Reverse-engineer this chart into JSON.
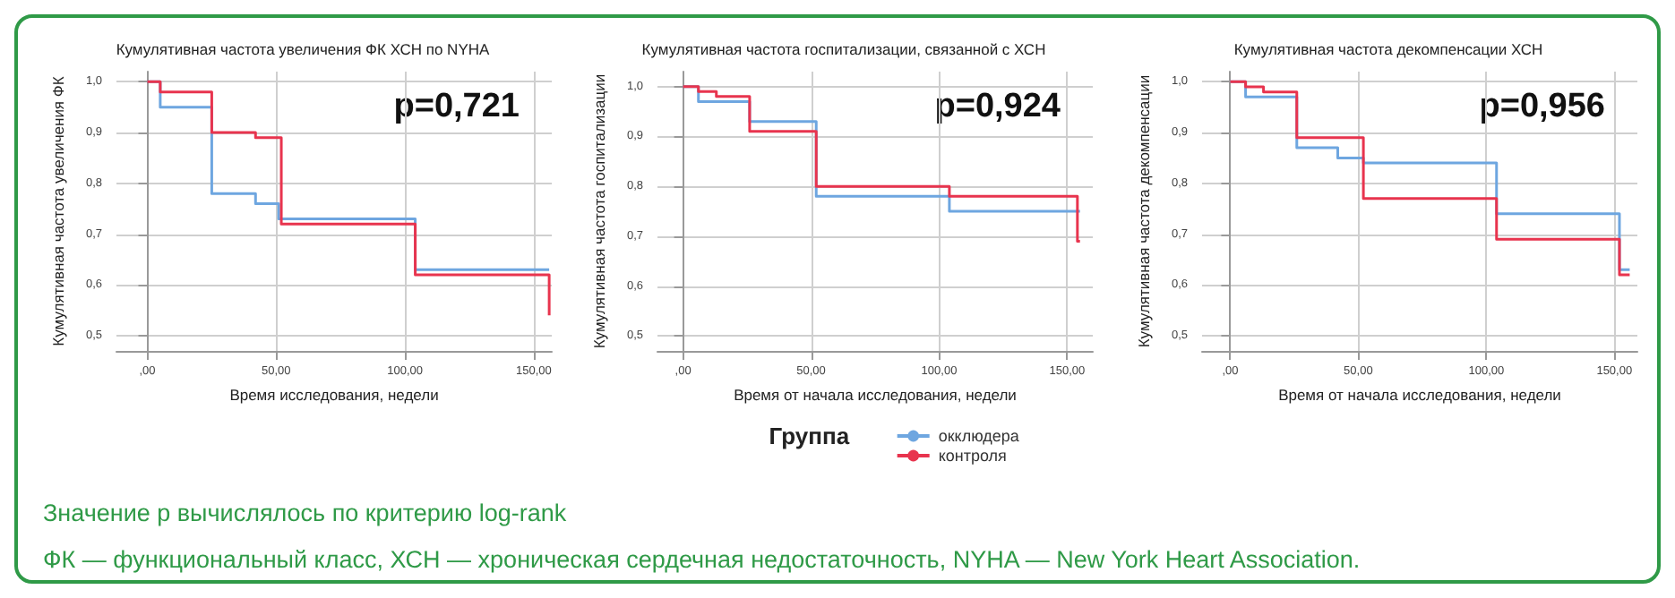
{
  "chart_data": [
    {
      "type": "step",
      "title": "Кумулятивная частота увеличения ФК ХСН по NYHA",
      "xlabel": "Время исследования, недели",
      "ylabel": "Кумулятивная частота увеличения ФК",
      "xlim": [
        -12,
        157
      ],
      "ylim": [
        0.47,
        1.02
      ],
      "xticks": [
        {
          "value": 0,
          "label": ",00"
        },
        {
          "value": 50,
          "label": "50,00"
        },
        {
          "value": 100,
          "label": "100,00"
        },
        {
          "value": 150,
          "label": "150,00"
        }
      ],
      "yticks": [
        {
          "value": 0.5,
          "label": "0,5"
        },
        {
          "value": 0.6,
          "label": "0,6"
        },
        {
          "value": 0.7,
          "label": "0,7"
        },
        {
          "value": 0.8,
          "label": "0,8"
        },
        {
          "value": 0.9,
          "label": "0,9"
        },
        {
          "value": 1,
          "label": "1,0"
        }
      ],
      "grid": true,
      "marker": "none",
      "legend": false,
      "annotations": [
        "p=0,721"
      ],
      "series": [
        {
          "color": "#6ea6e0",
          "x": [
            0,
            5,
            25,
            42,
            51,
            104,
            156
          ],
          "values": [
            1,
            0.95,
            0.78,
            0.76,
            0.73,
            0.63,
            0.63
          ]
        },
        {
          "color": "#e8344e",
          "x": [
            0,
            5,
            25,
            42,
            52,
            104,
            156,
            156
          ],
          "values": [
            1,
            0.98,
            0.9,
            0.89,
            0.72,
            0.62,
            0.62,
            0.54
          ]
        }
      ]
    },
    {
      "type": "step",
      "title": "Кумулятивная частота госпитализации, связанной с ХСН",
      "xlabel": "Время от начала исследования, недели",
      "ylabel": "Кумулятивная частота госпитализации",
      "xlim": [
        -10,
        160
      ],
      "ylim": [
        0.47,
        1.03
      ],
      "xticks": [
        {
          "value": 0,
          "label": ",00"
        },
        {
          "value": 50,
          "label": "50,00"
        },
        {
          "value": 100,
          "label": "100,00"
        },
        {
          "value": 150,
          "label": "150,00"
        }
      ],
      "yticks": [
        {
          "value": 0.5,
          "label": "0,5"
        },
        {
          "value": 0.6,
          "label": "0,6"
        },
        {
          "value": 0.7,
          "label": "0,7"
        },
        {
          "value": 0.8,
          "label": "0,8"
        },
        {
          "value": 0.9,
          "label": "0,9"
        },
        {
          "value": 1,
          "label": "1,0"
        }
      ],
      "grid": true,
      "marker": "none",
      "legend": "bottom",
      "legend_title": "Группа",
      "annotations": [
        "p=0,924"
      ],
      "series": [
        {
          "name": "окклюдера",
          "color": "#6ea6e0",
          "x": [
            0,
            6,
            26,
            52,
            104,
            155
          ],
          "values": [
            1,
            0.97,
            0.93,
            0.78,
            0.75,
            0.75
          ]
        },
        {
          "name": "контроля",
          "color": "#e8344e",
          "x": [
            0,
            6,
            13,
            26,
            52,
            104,
            154,
            155
          ],
          "values": [
            1,
            0.99,
            0.98,
            0.91,
            0.8,
            0.78,
            0.69,
            0.69
          ]
        }
      ]
    },
    {
      "type": "step",
      "title": "Кумулятивная частота декомпенсации ХСН",
      "xlabel": "Время от начала исследования, недели",
      "ylabel": "Кумулятивная частота декомпенсации",
      "xlim": [
        -11,
        159
      ],
      "ylim": [
        0.47,
        1.02
      ],
      "xticks": [
        {
          "value": 0,
          "label": ",00"
        },
        {
          "value": 50,
          "label": "50,00"
        },
        {
          "value": 100,
          "label": "100,00"
        },
        {
          "value": 150,
          "label": "150,00"
        }
      ],
      "yticks": [
        {
          "value": 0.5,
          "label": "0,5"
        },
        {
          "value": 0.6,
          "label": "0,6"
        },
        {
          "value": 0.7,
          "label": "0,7"
        },
        {
          "value": 0.8,
          "label": "0,8"
        },
        {
          "value": 0.9,
          "label": "0,9"
        },
        {
          "value": 1,
          "label": "1,0"
        }
      ],
      "grid": true,
      "marker": "none",
      "legend": false,
      "annotations": [
        "p=0,956"
      ],
      "series": [
        {
          "color": "#6ea6e0",
          "x": [
            0,
            6,
            26,
            42,
            52,
            104,
            152,
            156
          ],
          "values": [
            1,
            0.97,
            0.87,
            0.85,
            0.84,
            0.74,
            0.63,
            0.63
          ]
        },
        {
          "color": "#e8344e",
          "x": [
            0,
            6,
            13,
            26,
            52,
            104,
            152,
            156
          ],
          "values": [
            1,
            0.99,
            0.98,
            0.89,
            0.77,
            0.69,
            0.62,
            0.62
          ]
        }
      ]
    },
    {
      "type": "other",
      "annotations": [
        "Значение р вычислялось по критерию log-rank",
        "ФК — функциональный класс, ХСН — хроническая сердечная недостаточность, NYHA — New York Heart Association."
      ]
    }
  ]
}
